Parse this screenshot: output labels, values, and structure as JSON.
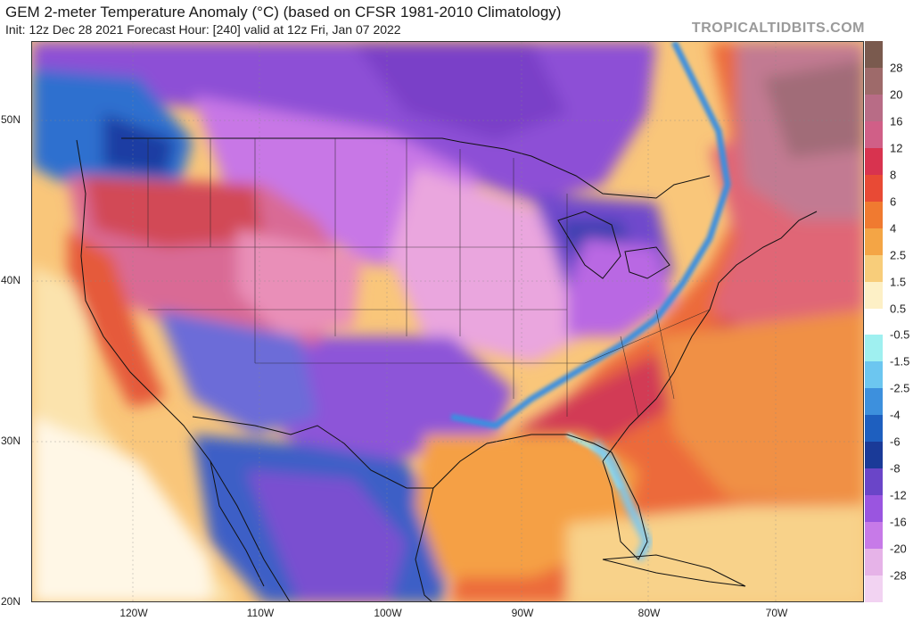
{
  "header": {
    "title": "GEM 2-meter Temperature Anomaly (°C) (based on CFSR 1981-2010 Climatology)",
    "subtitle": "Init: 12z Dec 28 2021   Forecast Hour: [240]   valid at 12z Fri, Jan 07 2022",
    "brand": "TROPICALTIDBITS.COM"
  },
  "axes": {
    "latitudes": [
      "50N",
      "40N",
      "30N",
      "20N"
    ],
    "longitudes": [
      "120W",
      "110W",
      "100W",
      "90W",
      "80W",
      "70W"
    ]
  },
  "legend": {
    "labels": [
      "28",
      "20",
      "16",
      "12",
      "8",
      "6",
      "4",
      "2.5",
      "1.5",
      "0.5",
      "-0.5",
      "-1.5",
      "-2.5",
      "-4",
      "-6",
      "-8",
      "-12",
      "-16",
      "-20",
      "-28"
    ],
    "colors": [
      "#7a5a4e",
      "#9e6a6a",
      "#b86c86",
      "#d05f87",
      "#d8334f",
      "#e84a35",
      "#f07a30",
      "#f4a545",
      "#f8cd7a",
      "#fdf0c6",
      "#ffffff",
      "#9ff0f0",
      "#6cc6f0",
      "#3d90dd",
      "#1e5fbf",
      "#1a3a98",
      "#6a45c8",
      "#9a55e0",
      "#c77ae8",
      "#e6b3e8",
      "#f2d3f2"
    ]
  }
}
